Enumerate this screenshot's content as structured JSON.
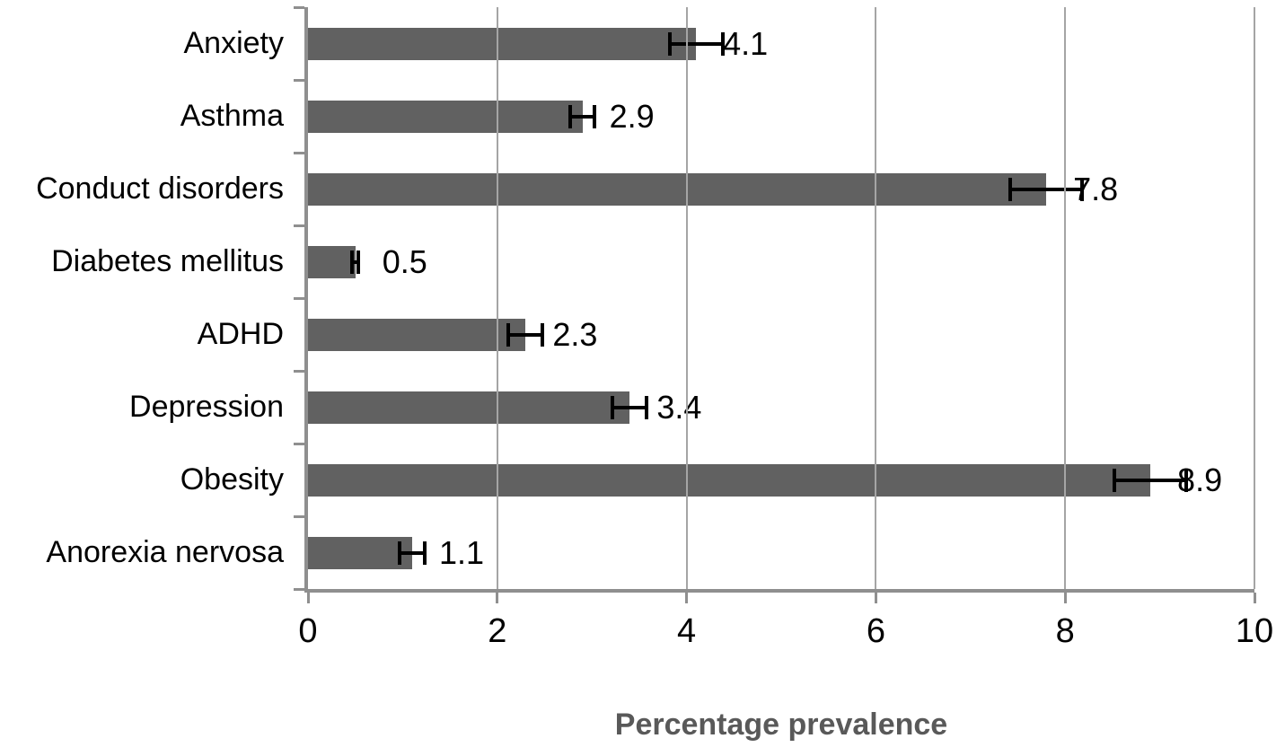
{
  "chart_data": {
    "type": "bar",
    "orientation": "horizontal",
    "categories": [
      "Anxiety",
      "Asthma",
      "Conduct disorders",
      "Diabetes mellitus",
      "ADHD",
      "Depression",
      "Obesity",
      "Anorexia nervosa"
    ],
    "values": [
      4.1,
      2.9,
      7.8,
      0.5,
      2.3,
      3.4,
      8.9,
      1.1
    ],
    "data_labels": [
      "4.1",
      "2.9",
      "7.8",
      "0.5",
      "2.3",
      "3.4",
      "8.9",
      "1.1"
    ],
    "errors": [
      0.3,
      0.15,
      0.4,
      0.05,
      0.2,
      0.2,
      0.4,
      0.15
    ],
    "title": "",
    "xlabel": "Percentage prevalence",
    "ylabel": "",
    "x_ticks": [
      0,
      2,
      4,
      6,
      8,
      10
    ],
    "xlim": [
      0,
      10
    ],
    "grid": true,
    "legend": false,
    "bar_color": "#616161",
    "gridline_color": "#a5a5a5",
    "axis_color": "#8f8f8f",
    "error_bar_color": "#000000",
    "label_color": "#000000",
    "xlabel_color": "#595959"
  }
}
